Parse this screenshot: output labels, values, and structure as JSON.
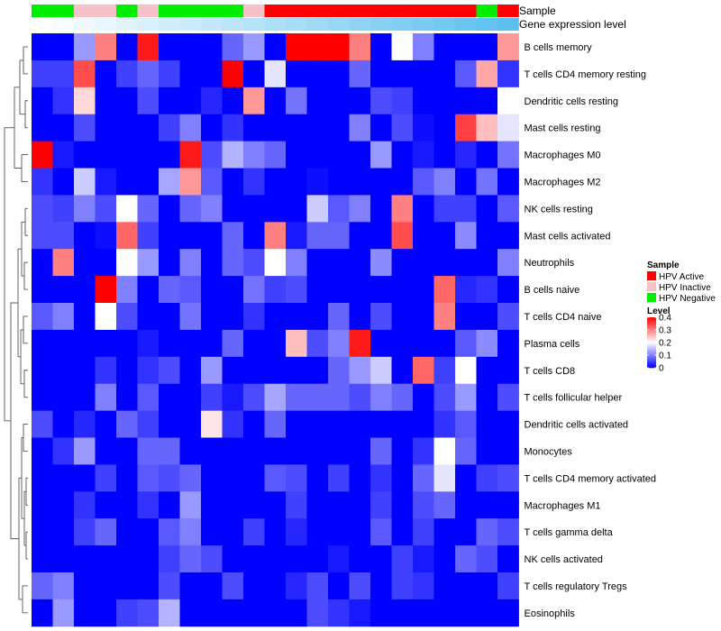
{
  "chart_data": {
    "type": "heatmap",
    "title": "",
    "annotation_labels": {
      "sample": "Sample",
      "gene_expression": "Gene expression level"
    },
    "rows": [
      "B cells memory",
      "T cells CD4 memory resting",
      "Dendritic cells resting",
      "Mast cells resting",
      "Macrophages M0",
      "Macrophages M2",
      "NK cells resting",
      "Mast cells activated",
      "Neutrophils",
      "B cells naive",
      "T cells CD4 naive",
      "Plasma cells",
      "T cells CD8",
      "T cells follicular helper",
      "Dendritic cells activated",
      "Monocytes",
      "T cells CD4 memory activated",
      "Macrophages M1",
      "T cells gamma delta",
      "NK cells activated",
      "T cells regulatory  Tregs",
      "Eosinophils"
    ],
    "sample_groups": [
      "Negative",
      "Negative",
      "Inactive",
      "Inactive",
      "Negative",
      "Inactive",
      "Negative",
      "Negative",
      "Negative",
      "Negative",
      "Inactive",
      "Active",
      "Active",
      "Active",
      "Active",
      "Active",
      "Active",
      "Active",
      "Active",
      "Active",
      "Active",
      "Negative",
      "Active"
    ],
    "gene_expression": [
      0.0,
      0.05,
      0.09,
      0.14,
      0.18,
      0.23,
      0.27,
      0.32,
      0.36,
      0.41,
      0.45,
      0.5,
      0.55,
      0.59,
      0.64,
      0.68,
      0.73,
      0.77,
      0.82,
      0.86,
      0.91,
      0.95,
      1.0
    ],
    "values": [
      [
        0,
        0,
        0.12,
        0.3,
        0,
        0.38,
        0,
        0,
        0,
        0.08,
        0.12,
        0,
        0.4,
        0.4,
        0.4,
        0.3,
        0,
        0.2,
        0.1,
        0,
        0,
        0,
        0.28
      ],
      [
        0.05,
        0.05,
        0.34,
        0,
        0.05,
        0.08,
        0.05,
        0,
        0,
        0.4,
        0,
        0.18,
        0,
        0,
        0,
        0.08,
        0,
        0,
        0,
        0,
        0.07,
        0.27,
        0.04
      ],
      [
        0,
        0.04,
        0.23,
        0,
        0,
        0.06,
        0,
        0,
        0.03,
        0,
        0.28,
        0,
        0.09,
        0,
        0,
        0,
        0.06,
        0.05,
        0,
        0,
        0,
        0,
        0.2
      ],
      [
        0,
        0,
        0.06,
        0,
        0,
        0,
        0.05,
        0.1,
        0,
        0.04,
        0,
        0,
        0,
        0,
        0,
        0.1,
        0,
        0.06,
        0.01,
        0,
        0.35,
        0.25,
        0.18
      ],
      [
        0.4,
        0.02,
        0,
        0,
        0,
        0,
        0,
        0.38,
        0.06,
        0.14,
        0.1,
        0.08,
        0,
        0,
        0,
        0,
        0.12,
        0,
        0.02,
        0,
        0.03,
        0,
        0.09
      ],
      [
        0.04,
        0,
        0.16,
        0.02,
        0,
        0,
        0.13,
        0.28,
        0.07,
        0,
        0.04,
        0,
        0,
        0.01,
        0,
        0,
        0,
        0,
        0.07,
        0.1,
        0,
        0.09,
        0
      ],
      [
        0.06,
        0.05,
        0.1,
        0.06,
        0.2,
        0.08,
        0,
        0.08,
        0.1,
        0,
        0,
        0,
        0,
        0.16,
        0.07,
        0.1,
        0,
        0.3,
        0,
        0.05,
        0.05,
        0,
        0.07
      ],
      [
        0.06,
        0.06,
        0,
        0.01,
        0.32,
        0.05,
        0,
        0,
        0,
        0.08,
        0,
        0.3,
        0.02,
        0.08,
        0.08,
        0,
        0,
        0.34,
        0,
        0,
        0.11,
        0,
        0
      ],
      [
        0,
        0.3,
        0,
        0,
        0.2,
        0.12,
        0,
        0.1,
        0,
        0.08,
        0.06,
        0.2,
        0.1,
        0,
        0,
        0,
        0.11,
        0,
        0,
        0,
        0,
        0,
        0.1
      ],
      [
        0,
        0,
        0,
        0.4,
        0.1,
        0,
        0.08,
        0.07,
        0,
        0,
        0.09,
        0.05,
        0.06,
        0,
        0,
        0,
        0,
        0,
        0,
        0.32,
        0.03,
        0.04,
        0
      ],
      [
        0.07,
        0.1,
        0,
        0.2,
        0.06,
        0,
        0,
        0.09,
        0,
        0,
        0.04,
        0,
        0,
        0,
        0.08,
        0,
        0.06,
        0,
        0,
        0.3,
        0,
        0,
        0.06
      ],
      [
        0,
        0,
        0,
        0,
        0,
        0.02,
        0,
        0,
        0,
        0.08,
        0,
        0,
        0.25,
        0.06,
        0.1,
        0.38,
        0,
        0,
        0,
        0,
        0.07,
        0.11,
        0
      ],
      [
        0,
        0,
        0,
        0.04,
        0,
        0.04,
        0.06,
        0,
        0.12,
        0,
        0,
        0,
        0,
        0,
        0.08,
        0.12,
        0.16,
        0,
        0.32,
        0.05,
        0.2,
        0,
        0
      ],
      [
        0,
        0,
        0,
        0.1,
        0,
        0.07,
        0,
        0,
        0.05,
        0.02,
        0.06,
        0.13,
        0.08,
        0.08,
        0.08,
        0.06,
        0.1,
        0.08,
        0,
        0.06,
        0.12,
        0,
        0.06
      ],
      [
        0.06,
        0,
        0.03,
        0,
        0.08,
        0.05,
        0,
        0,
        0.22,
        0.04,
        0,
        0.08,
        0,
        0,
        0,
        0,
        0,
        0,
        0,
        0.04,
        0.07,
        0,
        0
      ],
      [
        0,
        0.04,
        0.12,
        0,
        0,
        0.08,
        0.08,
        0,
        0,
        0,
        0,
        0,
        0,
        0,
        0,
        0,
        0.08,
        0,
        0.04,
        0.2,
        0.08,
        0,
        0
      ],
      [
        0,
        0,
        0,
        0.05,
        0,
        0.07,
        0.06,
        0.08,
        0,
        0,
        0,
        0.07,
        0.06,
        0,
        0.05,
        0,
        0.04,
        0,
        0.08,
        0.18,
        0,
        0.05,
        0.06
      ],
      [
        0,
        0,
        0.04,
        0,
        0,
        0.04,
        0,
        0.12,
        0,
        0,
        0,
        0,
        0.05,
        0,
        0,
        0,
        0.05,
        0,
        0.06,
        0.08,
        0,
        0,
        0
      ],
      [
        0,
        0,
        0.05,
        0.08,
        0,
        0,
        0.07,
        0.1,
        0,
        0,
        0.05,
        0,
        0.03,
        0,
        0,
        0,
        0.07,
        0,
        0.05,
        0,
        0,
        0.08,
        0.06
      ],
      [
        0,
        0,
        0,
        0,
        0,
        0,
        0.05,
        0.08,
        0.06,
        0,
        0,
        0,
        0,
        0,
        0.02,
        0,
        0,
        0.05,
        0.02,
        0,
        0.08,
        0.06,
        0
      ],
      [
        0.08,
        0.1,
        0,
        0,
        0,
        0,
        0.06,
        0,
        0,
        0.06,
        0,
        0,
        0.03,
        0.06,
        0,
        0.06,
        0,
        0.05,
        0.04,
        0,
        0,
        0,
        0.05
      ],
      [
        0,
        0.12,
        0,
        0,
        0.05,
        0.06,
        0.14,
        0,
        0,
        0,
        0,
        0,
        0,
        0.06,
        0.04,
        0.02,
        0,
        0,
        0,
        0,
        0,
        0,
        0
      ]
    ],
    "color_scale": {
      "min": 0,
      "max": 0.4,
      "low": "#0000ff",
      "mid": "#ffffff",
      "high": "#ff0000",
      "mid_value": 0.2
    },
    "gene_expression_colors": {
      "low": "#ffffff",
      "high": "#5bc0f0"
    },
    "legend": {
      "sample_title": "Sample",
      "sample_entries": [
        {
          "key": "Active",
          "label": "HPV Active",
          "color": "#ff0000"
        },
        {
          "key": "Inactive",
          "label": "HPV Inactive",
          "color": "#f7c1c8"
        },
        {
          "key": "Negative",
          "label": "HPV Negative",
          "color": "#00ee00"
        }
      ],
      "level_title": "Level",
      "level_ticks": [
        0.4,
        0.3,
        0.2,
        0.1,
        0
      ],
      "level_tick_labels": [
        "0.4",
        "0.3",
        "0.2",
        "0.1",
        "0"
      ],
      "placement": "right"
    }
  }
}
